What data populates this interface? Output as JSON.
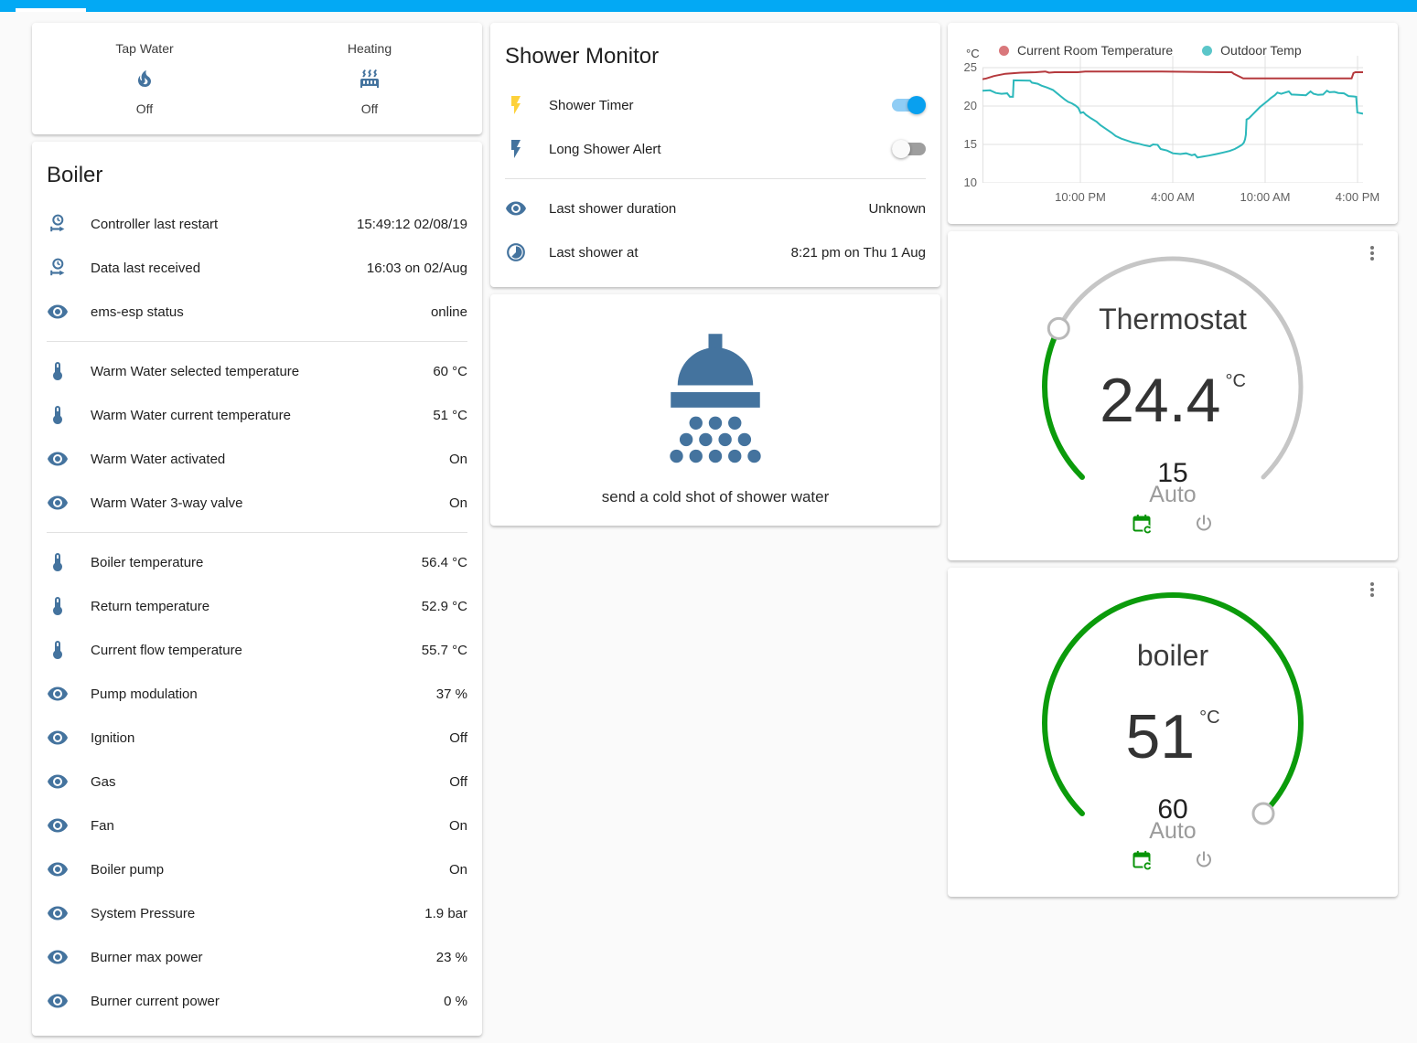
{
  "colors": {
    "app_bar": "#03a9f4",
    "entity_icon": "#44739e",
    "dial_green": "#0b9b0b",
    "toggle_on": "#09a0ef",
    "room_line": "#b5393d",
    "outdoor_line": "#2cb8bb"
  },
  "glance": {
    "items": [
      {
        "icon": "fire-icon",
        "label": "Tap Water",
        "state": "Off"
      },
      {
        "icon": "radiator-icon",
        "label": "Heating",
        "state": "Off"
      }
    ]
  },
  "boiler": {
    "title": "Boiler",
    "sections": [
      {
        "rows": [
          {
            "icon": "clock-start-icon",
            "label": "Controller last restart",
            "value": "15:49:12 02/08/19"
          },
          {
            "icon": "clock-start-icon",
            "label": "Data last received",
            "value": "16:03 on 02/Aug"
          },
          {
            "icon": "eye-icon",
            "label": "ems-esp status",
            "value": "online"
          }
        ]
      },
      {
        "rows": [
          {
            "icon": "thermometer-icon",
            "label": "Warm Water selected temperature",
            "value": "60 °C"
          },
          {
            "icon": "thermometer-icon",
            "label": "Warm Water current temperature",
            "value": "51 °C"
          },
          {
            "icon": "eye-icon",
            "label": "Warm Water activated",
            "value": "On"
          },
          {
            "icon": "eye-icon",
            "label": "Warm Water 3-way valve",
            "value": "On"
          }
        ]
      },
      {
        "rows": [
          {
            "icon": "thermometer-icon",
            "label": "Boiler temperature",
            "value": "56.4 °C"
          },
          {
            "icon": "thermometer-icon",
            "label": "Return temperature",
            "value": "52.9 °C"
          },
          {
            "icon": "thermometer-icon",
            "label": "Current flow temperature",
            "value": "55.7 °C"
          },
          {
            "icon": "eye-icon",
            "label": "Pump modulation",
            "value": "37 %"
          },
          {
            "icon": "eye-icon",
            "label": "Ignition",
            "value": "Off"
          },
          {
            "icon": "eye-icon",
            "label": "Gas",
            "value": "Off"
          },
          {
            "icon": "eye-icon",
            "label": "Fan",
            "value": "On"
          },
          {
            "icon": "eye-icon",
            "label": "Boiler pump",
            "value": "On"
          },
          {
            "icon": "eye-icon",
            "label": "System Pressure",
            "value": "1.9 bar"
          },
          {
            "icon": "eye-icon",
            "label": "Burner max power",
            "value": "23 %"
          },
          {
            "icon": "eye-icon",
            "label": "Burner current power",
            "value": "0 %"
          }
        ]
      }
    ]
  },
  "shower": {
    "title": "Shower Monitor",
    "switches": [
      {
        "icon": "flash-icon",
        "label": "Shower Timer",
        "state": "on"
      },
      {
        "icon": "flash-icon",
        "label": "Long Shower Alert",
        "state": "off"
      }
    ],
    "rows": [
      {
        "icon": "eye-icon",
        "label": "Last shower duration",
        "value": "Unknown"
      },
      {
        "icon": "clock-pie-icon",
        "label": "Last shower at",
        "value": "8:21 pm on Thu 1 Aug"
      }
    ]
  },
  "shower_action": {
    "icon": "shower-head-icon",
    "caption": "send a cold shot of shower water"
  },
  "chart_data": {
    "type": "line",
    "ylabel": "°C",
    "ylim": [
      10,
      25
    ],
    "yticks": [
      "25",
      "20",
      "15",
      "10"
    ],
    "xticks": [
      {
        "label": "10:00 PM",
        "pos": 0.257
      },
      {
        "label": "4:00 AM",
        "pos": 0.5
      },
      {
        "label": "10:00 AM",
        "pos": 0.743
      },
      {
        "label": "4:00 PM",
        "pos": 0.986
      }
    ],
    "legend_position": "top",
    "grid": true,
    "series": [
      {
        "name": "Current Room Temperature",
        "color": "#b5393d",
        "dot_color": "#d9777b",
        "points": [
          [
            0,
            23.5
          ],
          [
            0.01,
            23.6
          ],
          [
            0.03,
            23.9
          ],
          [
            0.06,
            24.2
          ],
          [
            0.1,
            24.35
          ],
          [
            0.14,
            24.4
          ],
          [
            0.165,
            24.5
          ],
          [
            0.175,
            24.35
          ],
          [
            0.19,
            24.4
          ],
          [
            0.25,
            24.4
          ],
          [
            0.27,
            24.5
          ],
          [
            0.45,
            24.5
          ],
          [
            0.55,
            24.45
          ],
          [
            0.63,
            24.4
          ],
          [
            0.655,
            24.4
          ],
          [
            0.66,
            24.2
          ],
          [
            0.685,
            23.6
          ],
          [
            0.85,
            23.6
          ],
          [
            0.97,
            23.6
          ],
          [
            0.975,
            24.3
          ],
          [
            0.98,
            24.4
          ],
          [
            1,
            24.4
          ]
        ]
      },
      {
        "name": "Outdoor Temp",
        "color": "#2cb8bb",
        "dot_color": "#5bc6c9",
        "points": [
          [
            0,
            22.0
          ],
          [
            0.02,
            22.05
          ],
          [
            0.035,
            21.7
          ],
          [
            0.05,
            21.6
          ],
          [
            0.065,
            21.65
          ],
          [
            0.072,
            21.2
          ],
          [
            0.08,
            21.2
          ],
          [
            0.082,
            23.35
          ],
          [
            0.125,
            23.3
          ],
          [
            0.13,
            23.05
          ],
          [
            0.145,
            22.9
          ],
          [
            0.155,
            22.65
          ],
          [
            0.17,
            22.4
          ],
          [
            0.185,
            22.1
          ],
          [
            0.195,
            21.7
          ],
          [
            0.205,
            21.3
          ],
          [
            0.215,
            20.9
          ],
          [
            0.225,
            20.55
          ],
          [
            0.235,
            20.35
          ],
          [
            0.245,
            20.05
          ],
          [
            0.252,
            19.75
          ],
          [
            0.258,
            19.1
          ],
          [
            0.265,
            19.2
          ],
          [
            0.272,
            18.85
          ],
          [
            0.285,
            18.4
          ],
          [
            0.3,
            17.95
          ],
          [
            0.31,
            17.5
          ],
          [
            0.325,
            17.0
          ],
          [
            0.34,
            16.5
          ],
          [
            0.35,
            16.1
          ],
          [
            0.365,
            15.75
          ],
          [
            0.38,
            15.5
          ],
          [
            0.395,
            15.25
          ],
          [
            0.41,
            15.1
          ],
          [
            0.425,
            14.9
          ],
          [
            0.44,
            14.75
          ],
          [
            0.448,
            15.0
          ],
          [
            0.46,
            14.95
          ],
          [
            0.468,
            14.4
          ],
          [
            0.485,
            14.2
          ],
          [
            0.5,
            13.85
          ],
          [
            0.52,
            13.75
          ],
          [
            0.535,
            13.85
          ],
          [
            0.55,
            13.6
          ],
          [
            0.558,
            13.7
          ],
          [
            0.565,
            13.3
          ],
          [
            0.578,
            13.4
          ],
          [
            0.595,
            13.55
          ],
          [
            0.615,
            13.75
          ],
          [
            0.633,
            13.95
          ],
          [
            0.65,
            14.15
          ],
          [
            0.663,
            14.4
          ],
          [
            0.672,
            14.65
          ],
          [
            0.682,
            14.95
          ],
          [
            0.687,
            15.25
          ],
          [
            0.69,
            15.65
          ],
          [
            0.692,
            16.25
          ],
          [
            0.694,
            18.25
          ],
          [
            0.7,
            18.4
          ],
          [
            0.71,
            18.9
          ],
          [
            0.72,
            19.4
          ],
          [
            0.73,
            19.9
          ],
          [
            0.74,
            20.3
          ],
          [
            0.75,
            20.7
          ],
          [
            0.758,
            21.05
          ],
          [
            0.768,
            21.4
          ],
          [
            0.775,
            21.75
          ],
          [
            0.785,
            21.6
          ],
          [
            0.795,
            21.75
          ],
          [
            0.805,
            21.9
          ],
          [
            0.812,
            21.5
          ],
          [
            0.83,
            21.45
          ],
          [
            0.85,
            21.4
          ],
          [
            0.862,
            21.9
          ],
          [
            0.87,
            21.6
          ],
          [
            0.882,
            21.45
          ],
          [
            0.895,
            21.5
          ],
          [
            0.905,
            22.0
          ],
          [
            0.912,
            21.8
          ],
          [
            0.925,
            21.85
          ],
          [
            0.935,
            21.7
          ],
          [
            0.95,
            21.65
          ],
          [
            0.962,
            21.3
          ],
          [
            0.975,
            21.25
          ],
          [
            0.982,
            21.2
          ],
          [
            0.985,
            19.15
          ],
          [
            1,
            19.0
          ]
        ]
      }
    ]
  },
  "thermostat": {
    "title": "Thermostat",
    "value": "24.4",
    "unit": "°C",
    "target": "15",
    "mode": "Auto"
  },
  "boiler_dial": {
    "title": "boiler",
    "value": "51",
    "unit": "°C",
    "target": "60",
    "mode": "Auto"
  }
}
